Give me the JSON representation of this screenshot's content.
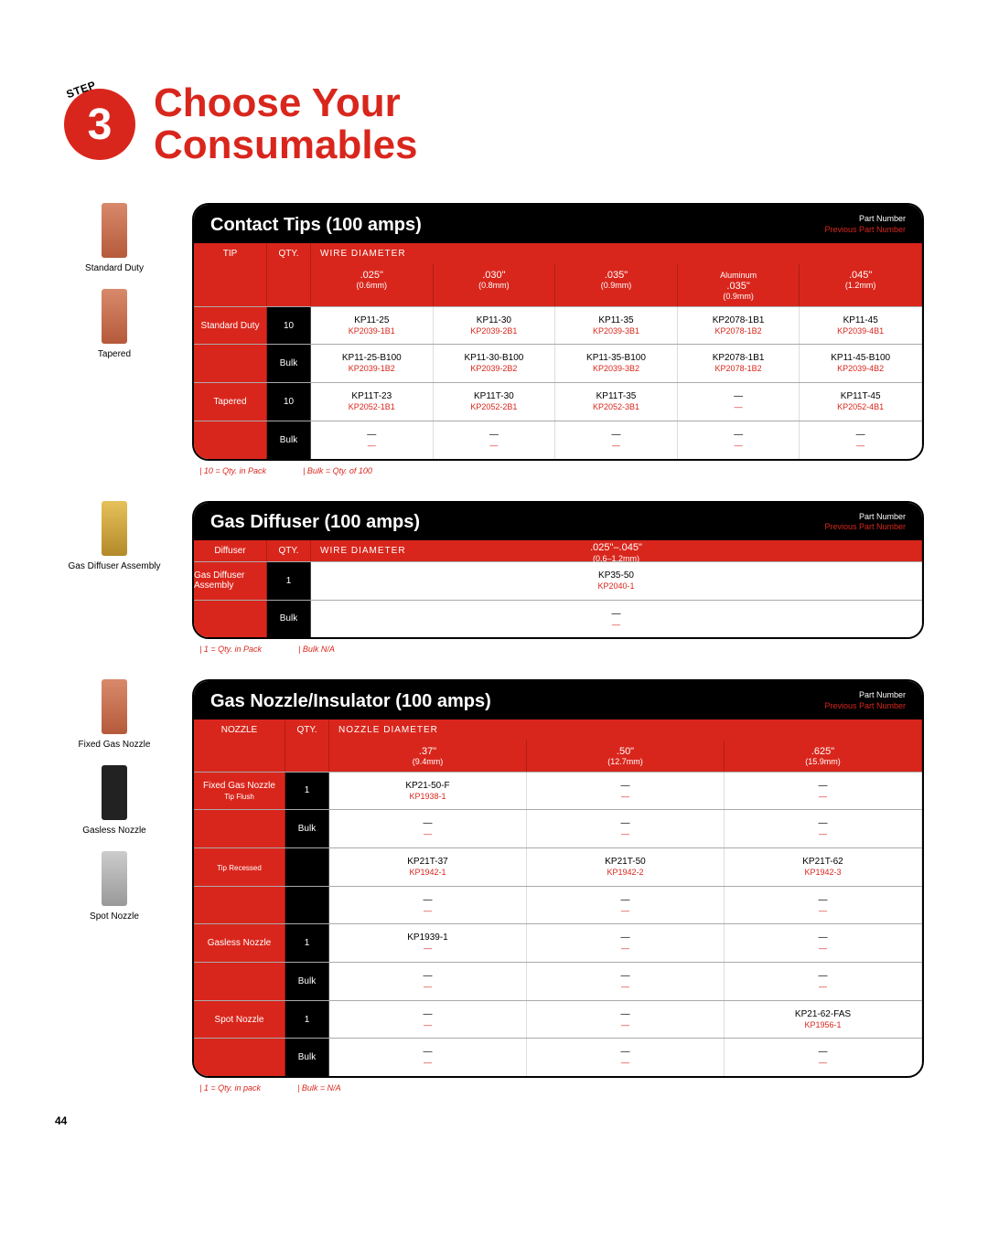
{
  "step": {
    "number": "3",
    "label": "STEP",
    "title_l1": "Choose Your",
    "title_l2": "Consumables"
  },
  "page_number": "44",
  "pn_key": {
    "current": "Part Number",
    "previous": "Previous Part Number"
  },
  "colors": {
    "accent": "#d9261c",
    "black": "#000000"
  },
  "t1": {
    "title": "Contact Tips (100 amps)",
    "hdr": {
      "c1": "TIP",
      "c2": "QTY.",
      "c3": "WIRE DIAMETER"
    },
    "cols": [
      {
        "in": ".025\"",
        "mm": "(0.6mm)"
      },
      {
        "in": ".030\"",
        "mm": "(0.8mm)"
      },
      {
        "in": ".035\"",
        "mm": "(0.9mm)"
      },
      {
        "in": ".035\"",
        "mm": "(0.9mm)",
        "note": "Aluminum"
      },
      {
        "in": ".045\"",
        "mm": "(1.2mm)"
      }
    ],
    "groups": [
      {
        "label": "Standard Duty",
        "rows": [
          {
            "qty": "10",
            "cells": [
              {
                "pn": "KP11-25",
                "prev": "KP2039-1B1"
              },
              {
                "pn": "KP11-30",
                "prev": "KP2039-2B1"
              },
              {
                "pn": "KP11-35",
                "prev": "KP2039-3B1"
              },
              {
                "pn": "KP2078-1B1",
                "prev": "KP2078-1B2"
              },
              {
                "pn": "KP11-45",
                "prev": "KP2039-4B1"
              }
            ]
          },
          {
            "qty": "Bulk",
            "cells": [
              {
                "pn": "KP11-25-B100",
                "prev": "KP2039-1B2"
              },
              {
                "pn": "KP11-30-B100",
                "prev": "KP2039-2B2"
              },
              {
                "pn": "KP11-35-B100",
                "prev": "KP2039-3B2"
              },
              {
                "pn": "KP2078-1B1",
                "prev": "KP2078-1B2"
              },
              {
                "pn": "KP11-45-B100",
                "prev": "KP2039-4B2"
              }
            ]
          }
        ]
      },
      {
        "label": "Tapered",
        "rows": [
          {
            "qty": "10",
            "cells": [
              {
                "pn": "KP11T-23",
                "prev": "KP2052-1B1"
              },
              {
                "pn": "KP11T-30",
                "prev": "KP2052-2B1"
              },
              {
                "pn": "KP11T-35",
                "prev": "KP2052-3B1"
              },
              {
                "pn": "—",
                "prev": "—"
              },
              {
                "pn": "KP11T-45",
                "prev": "KP2052-4B1"
              }
            ]
          },
          {
            "qty": "Bulk",
            "cells": [
              {
                "pn": "—",
                "prev": "—"
              },
              {
                "pn": "—",
                "prev": "—"
              },
              {
                "pn": "—",
                "prev": "—"
              },
              {
                "pn": "—",
                "prev": "—"
              },
              {
                "pn": "—",
                "prev": "—"
              }
            ]
          }
        ]
      }
    ],
    "foot": [
      "10 = Qty. in Pack",
      "Bulk = Qty. of 100"
    ],
    "thumbs": [
      {
        "label": "Standard Duty",
        "cls": ""
      },
      {
        "label": "Tapered",
        "cls": ""
      }
    ]
  },
  "t2": {
    "title": "Gas Diffuser (100 amps)",
    "hdr": {
      "c1": "Diffuser",
      "c2": "QTY.",
      "c3": "WIRE DIAMETER"
    },
    "col": {
      "in": ".025\"–.045\"",
      "mm": "(0.6–1.2mm)"
    },
    "group": {
      "label": "Gas Diffuser Assembly",
      "rows": [
        {
          "qty": "1",
          "cells": [
            {
              "pn": "KP35-50",
              "prev": "KP2040-1"
            }
          ]
        },
        {
          "qty": "Bulk",
          "cells": [
            {
              "pn": "—",
              "prev": "—"
            }
          ]
        }
      ]
    },
    "foot": [
      "1 = Qty. in Pack",
      "Bulk N/A"
    ],
    "thumbs": [
      {
        "label": "Gas Diffuser Assembly",
        "cls": "gold"
      }
    ]
  },
  "t3": {
    "title": "Gas Nozzle/Insulator (100 amps)",
    "hdr": {
      "c1": "NOZZLE",
      "c2": "QTY.",
      "c3": "NOZZLE DIAMETER"
    },
    "cols": [
      {
        "in": ".37\"",
        "mm": "(9.4mm)"
      },
      {
        "in": ".50\"",
        "mm": "(12.7mm)"
      },
      {
        "in": ".625\"",
        "mm": "(15.9mm)"
      }
    ],
    "groups": [
      {
        "label": "Fixed Gas Nozzle",
        "sub": "Tip Flush",
        "rows": [
          {
            "qty": "1",
            "cells": [
              {
                "pn": "KP21-50-F",
                "prev": "KP1938-1"
              },
              {
                "pn": "—",
                "prev": "—"
              },
              {
                "pn": "—",
                "prev": "—"
              }
            ]
          },
          {
            "qty": "Bulk",
            "cells": [
              {
                "pn": "—",
                "prev": "—"
              },
              {
                "pn": "—",
                "prev": "—"
              },
              {
                "pn": "—",
                "prev": "—"
              }
            ]
          }
        ]
      },
      {
        "label": "",
        "sub": "Tip Recessed",
        "rows": [
          {
            "qty": "",
            "cells": [
              {
                "pn": "KP21T-37",
                "prev": "KP1942-1"
              },
              {
                "pn": "KP21T-50",
                "prev": "KP1942-2"
              },
              {
                "pn": "KP21T-62",
                "prev": "KP1942-3"
              }
            ]
          },
          {
            "qty": "",
            "cells": [
              {
                "pn": "—",
                "prev": "—"
              },
              {
                "pn": "—",
                "prev": "—"
              },
              {
                "pn": "—",
                "prev": "—"
              }
            ]
          }
        ]
      },
      {
        "label": "Gasless Nozzle",
        "rows": [
          {
            "qty": "1",
            "cells": [
              {
                "pn": "KP1939-1",
                "prev": "—"
              },
              {
                "pn": "—",
                "prev": "—"
              },
              {
                "pn": "—",
                "prev": "—"
              }
            ]
          },
          {
            "qty": "Bulk",
            "cells": [
              {
                "pn": "—",
                "prev": "—"
              },
              {
                "pn": "—",
                "prev": "—"
              },
              {
                "pn": "—",
                "prev": "—"
              }
            ]
          }
        ]
      },
      {
        "label": "Spot Nozzle",
        "rows": [
          {
            "qty": "1",
            "cells": [
              {
                "pn": "—",
                "prev": "—"
              },
              {
                "pn": "—",
                "prev": "—"
              },
              {
                "pn": "KP21-62-FAS",
                "prev": "KP1956-1"
              }
            ]
          },
          {
            "qty": "Bulk",
            "cells": [
              {
                "pn": "—",
                "prev": "—"
              },
              {
                "pn": "—",
                "prev": "—"
              },
              {
                "pn": "—",
                "prev": "—"
              }
            ]
          }
        ]
      }
    ],
    "foot": [
      "1 = Qty. in pack",
      "Bulk = N/A"
    ],
    "thumbs": [
      {
        "label": "Fixed Gas Nozzle",
        "cls": ""
      },
      {
        "label": "Gasless Nozzle",
        "cls": "black"
      },
      {
        "label": "Spot Nozzle",
        "cls": "silver"
      }
    ]
  }
}
